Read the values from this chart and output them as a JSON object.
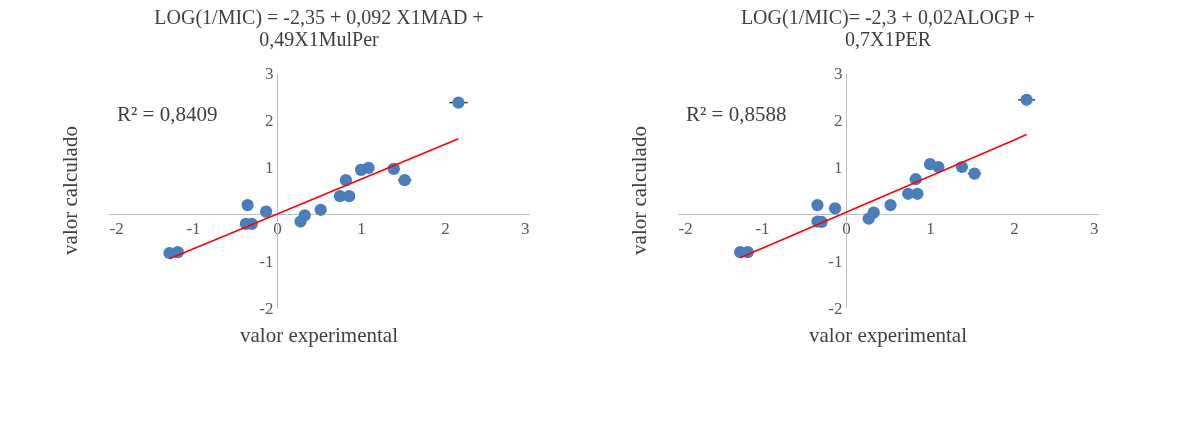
{
  "chart_data": [
    {
      "type": "scatter",
      "title": "LOG(1/MIC) = -2,35 + 0,092 X1MAD + 0,49X1MulPer",
      "xlabel": "valor experimental",
      "ylabel": "valor calculado",
      "annotations": [
        "R² = 0,8409"
      ],
      "xlim": [
        -2,
        3
      ],
      "ylim": [
        -2,
        3
      ],
      "xticks": [
        -2,
        -1,
        0,
        1,
        2,
        3
      ],
      "yticks": [
        -2,
        -1,
        1,
        2,
        3
      ],
      "series": [
        {
          "type": "scatter",
          "marker": "circle",
          "color": "#4a7ebb",
          "x": [
            -1.28,
            -1.18,
            -0.35,
            -0.37,
            -0.3,
            -0.13,
            0.28,
            0.33,
            0.52,
            0.75,
            0.86,
            0.82,
            1.0,
            1.09,
            1.39,
            1.52,
            2.16
          ],
          "values": [
            -0.83,
            -0.81,
            0.19,
            -0.21,
            -0.21,
            0.05,
            -0.16,
            -0.03,
            0.09,
            0.38,
            0.38,
            0.72,
            0.94,
            0.98,
            0.96,
            0.72,
            2.37
          ],
          "xerrors": [
            null,
            null,
            null,
            null,
            null,
            null,
            null,
            null,
            null,
            null,
            null,
            null,
            null,
            null,
            0.07,
            0.08,
            0.11
          ]
        },
        {
          "type": "line",
          "color": "#ff0000",
          "x": [
            -1.28,
            2.16
          ],
          "values": [
            -0.95,
            1.6
          ]
        }
      ]
    },
    {
      "type": "scatter",
      "title": "LOG(1/MIC)= -2,3 + 0,02ALOGP + 0,7X1PER",
      "xlabel": "valor experimental",
      "ylabel": "valor calculado",
      "annotations": [
        "R² = 0,8588"
      ],
      "xlim": [
        -2,
        3
      ],
      "ylim": [
        -2,
        3
      ],
      "xticks": [
        -2,
        -1,
        0,
        1,
        2,
        3
      ],
      "yticks": [
        -2,
        -1,
        1,
        2,
        3
      ],
      "series": [
        {
          "type": "scatter",
          "marker": "circle",
          "color": "#4a7ebb",
          "x": [
            -1.26,
            -1.17,
            -0.34,
            -0.34,
            -0.29,
            -0.13,
            0.27,
            0.33,
            0.53,
            0.74,
            0.85,
            0.83,
            1.0,
            1.1,
            1.38,
            1.53,
            2.15
          ],
          "values": [
            -0.81,
            -0.81,
            0.19,
            -0.16,
            -0.17,
            0.12,
            -0.1,
            0.03,
            0.19,
            0.43,
            0.43,
            0.74,
            1.06,
            1.0,
            1.0,
            0.86,
            2.43
          ],
          "xerrors": [
            null,
            null,
            null,
            null,
            null,
            null,
            null,
            null,
            null,
            null,
            null,
            null,
            null,
            null,
            0.07,
            0.08,
            0.1
          ]
        },
        {
          "type": "line",
          "color": "#ff0000",
          "x": [
            -1.26,
            2.15
          ],
          "values": [
            -0.93,
            1.69
          ]
        }
      ]
    }
  ]
}
